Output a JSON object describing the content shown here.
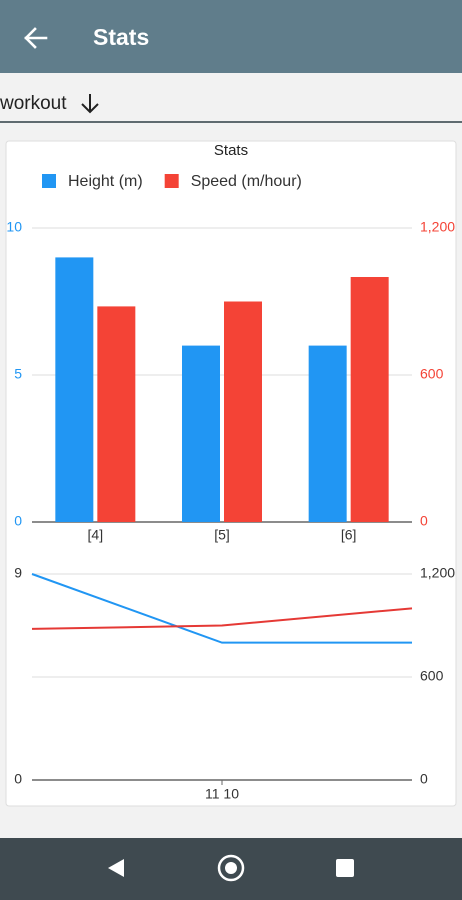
{
  "app_bar": {
    "title": "Stats"
  },
  "dropdown": {
    "label": "workout"
  },
  "chart_data": [
    {
      "type": "bar",
      "title": "Stats",
      "categories": [
        "[4]",
        "[5]",
        "[6]"
      ],
      "series": [
        {
          "name": "Height (m)",
          "color": "#2196f3",
          "values": [
            9,
            6,
            6
          ]
        },
        {
          "name": "Speed (m/hour)",
          "color": "#f44336",
          "values": [
            880,
            900,
            1000
          ],
          "axis": "y2"
        }
      ],
      "ylim": [
        0,
        10
      ],
      "yticks": [
        0,
        5,
        10
      ],
      "y2lim": [
        0,
        1200
      ],
      "y2ticks": [
        0,
        600,
        {
          "value": 1200,
          "label": "1,200"
        }
      ],
      "grid": "y",
      "colored_axes": true,
      "legend": "top"
    },
    {
      "type": "line",
      "categories": [
        null,
        "11 10",
        null
      ],
      "series": [
        {
          "color": "#2196f3",
          "values": [
            9,
            6,
            6
          ]
        },
        {
          "color": "#e53935",
          "values": [
            880,
            900,
            1000
          ],
          "axis": "y2"
        }
      ],
      "ylim": [
        0,
        9
      ],
      "yticks": [
        0,
        9
      ],
      "y2lim": [
        0,
        1200
      ],
      "y2ticks": [
        0,
        600,
        {
          "value": 1200,
          "label": "1,200"
        }
      ],
      "grid": "y2",
      "colored_axes": false
    }
  ]
}
